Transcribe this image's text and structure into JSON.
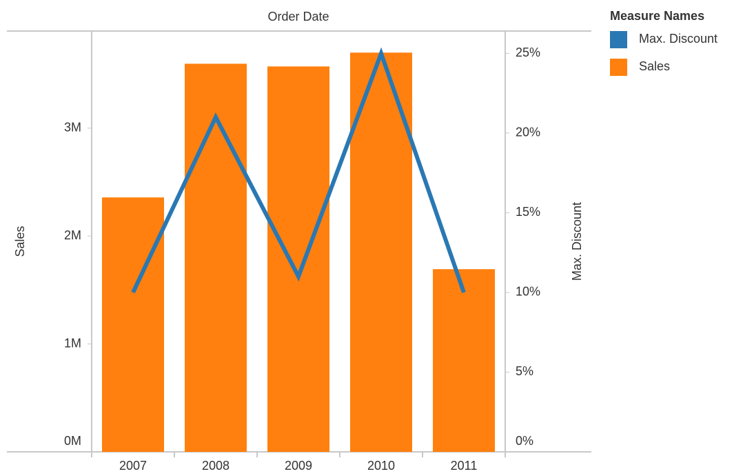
{
  "chart_data": {
    "type": "combo",
    "title": "Order Date",
    "ylabel": "Sales",
    "y2label": "Max. Discount",
    "legend_title": "Measure Names",
    "legend": "right",
    "categories": [
      "2007",
      "2008",
      "2009",
      "2010",
      "2011"
    ],
    "series": [
      {
        "name": "Max. Discount",
        "type": "line",
        "axis": "y2",
        "color": "#2a78b3",
        "values": [
          10,
          21,
          11,
          25,
          10
        ]
      },
      {
        "name": "Sales",
        "type": "bar",
        "color": "#ff800e",
        "values": [
          2358000,
          3597000,
          3572000,
          3700000,
          1693000
        ]
      }
    ],
    "ylim": [
      0,
      3900000
    ],
    "yticks": [
      {
        "value": 0,
        "label": "0M"
      },
      {
        "value": 1000000,
        "label": "1M"
      },
      {
        "value": 2000000,
        "label": "2M"
      },
      {
        "value": 3000000,
        "label": "3M"
      }
    ],
    "y2lim": [
      0,
      26.4
    ],
    "y2ticks": [
      {
        "value": 0,
        "label": "0%"
      },
      {
        "value": 5,
        "label": "5%"
      },
      {
        "value": 10,
        "label": "10%"
      },
      {
        "value": 15,
        "label": "15%"
      },
      {
        "value": 20,
        "label": "20%"
      },
      {
        "value": 25,
        "label": "25%"
      }
    ]
  }
}
